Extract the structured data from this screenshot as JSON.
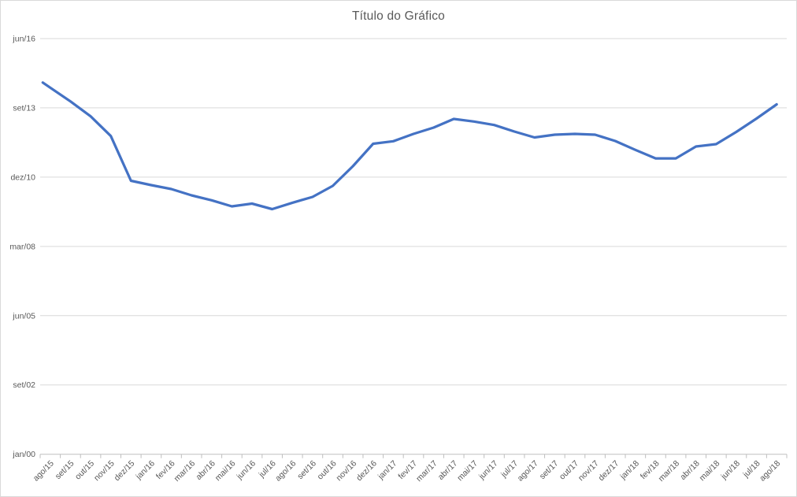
{
  "chart_data": {
    "type": "line",
    "title": "Título do Gráfico",
    "categories": [
      "ago/15",
      "set/15",
      "out/15",
      "nov/15",
      "dez/15",
      "jan/16",
      "fev/16",
      "mar/16",
      "abr/16",
      "mai/16",
      "jun/16",
      "jul/16",
      "ago/16",
      "set/16",
      "out/16",
      "nov/16",
      "dez/16",
      "jan/17",
      "fev/17",
      "mar/17",
      "abr/17",
      "mai/17",
      "jun/17",
      "jul/17",
      "ago/17",
      "set/17",
      "out/17",
      "nov/17",
      "dez/17",
      "jan/18",
      "fev/18",
      "mar/18",
      "abr/18",
      "mai/18",
      "jun/18",
      "jul/18",
      "ago/18"
    ],
    "values": [
      5292,
      5094,
      4878,
      4593,
      3948,
      3885,
      3828,
      3737,
      3666,
      3578,
      3618,
      3538,
      3630,
      3715,
      3874,
      4158,
      4482,
      4518,
      4624,
      4715,
      4840,
      4802,
      4752,
      4658,
      4573,
      4613,
      4624,
      4613,
      4522,
      4393,
      4271,
      4271,
      4442,
      4476,
      4652,
      4846,
      5050
    ],
    "xlabel": "",
    "ylabel": "",
    "y_axis": {
      "tick_values": [
        0,
        1000,
        2000,
        3000,
        4000,
        5000,
        6000
      ],
      "tick_labels": [
        "jan/00",
        "set/02",
        "jun/05",
        "mar/08",
        "dez/10",
        "set/13",
        "jun/16"
      ],
      "min": 0,
      "major_unit": 1000
    },
    "x_axis": {
      "label_rotation_deg": 45
    },
    "grid": true,
    "legend": false
  },
  "style": {
    "line_color": "#4472C4",
    "gridline_color": "#D9D9D9",
    "axis_color": "#BFBFBF",
    "label_color": "#595959",
    "title_color": "#595959",
    "background": "#FFFFFF",
    "border_color": "#D9D9D9"
  }
}
